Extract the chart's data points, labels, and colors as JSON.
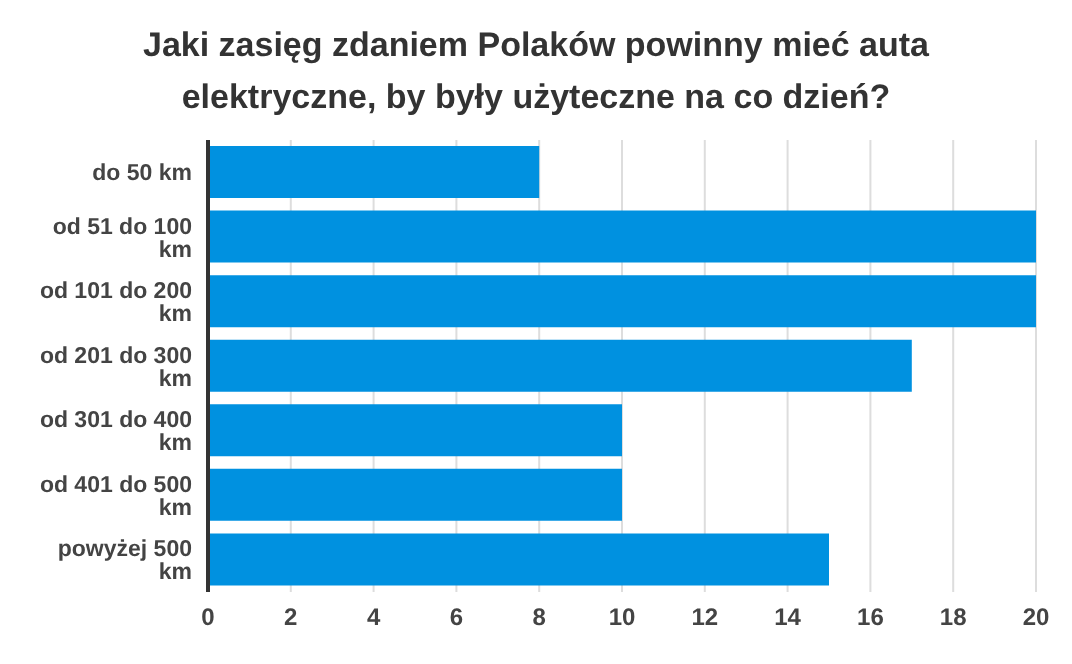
{
  "chart_data": {
    "type": "bar",
    "orientation": "horizontal",
    "title": "Jaki zasięg zdaniem Polaków powinny mieć auta elektryczne, by były użyteczne na co dzień?",
    "categories": [
      "do 50 km",
      "od 51 do 100 km",
      "od 101 do 200 km",
      "od 201 do 300 km",
      "od 301 do 400 km",
      "od 401 do 500 km",
      "powyżej 500 km"
    ],
    "values": [
      8,
      20,
      20,
      17,
      10,
      10,
      15
    ],
    "color": "#0091e0",
    "xlim": [
      0,
      20
    ],
    "xticks": [
      0,
      2,
      4,
      6,
      8,
      10,
      12,
      14,
      16,
      18,
      20
    ],
    "grid": "x"
  }
}
